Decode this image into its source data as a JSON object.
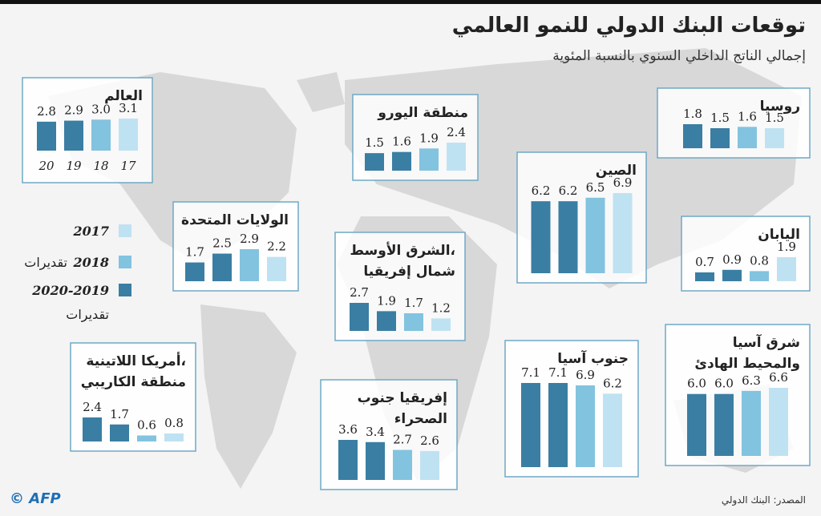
{
  "title": "توقعات البنك الدولي للنمو العالمي",
  "subtitle": "إجمالي الناتج الداخلي السنوي بالنسبة المئوية",
  "bar_colors": [
    "#3a7ea3",
    "#3a7ea3",
    "#82c3df",
    "#bfe2f2"
  ],
  "legend": [
    {
      "year": "2017",
      "color": "#bfe2f2"
    },
    {
      "year": "2018",
      "note": "تقديرات",
      "color": "#82c3df"
    },
    {
      "year": "2020-2019",
      "note": "تقديرات",
      "color": "#3a7ea3"
    }
  ],
  "source": "المصدر: البنك الدولي",
  "credit": "© AFP",
  "chart_data": [
    {
      "type": "bar",
      "title": [
        "العالم"
      ],
      "categories": [
        "20",
        "19",
        "18",
        "17"
      ],
      "values": [
        2.8,
        2.9,
        3.0,
        3.1
      ],
      "value_labels": [
        "2.8",
        "2.9",
        "3.0",
        "3.1"
      ]
    },
    {
      "type": "bar",
      "title": [
        "منطقة اليورو"
      ],
      "values": [
        1.5,
        1.6,
        1.9,
        2.4
      ],
      "value_labels": [
        "1.5",
        "1.6",
        "1.9",
        "2.4"
      ]
    },
    {
      "type": "bar",
      "title": [
        "روسيا"
      ],
      "values": [
        1.8,
        1.5,
        1.6,
        1.5
      ],
      "value_labels": [
        "1.8",
        "1.5",
        "1.6",
        "1.5"
      ]
    },
    {
      "type": "bar",
      "title": [
        "الولايات المتحدة"
      ],
      "values": [
        1.7,
        2.5,
        2.9,
        2.2
      ],
      "value_labels": [
        "1.7",
        "2.5",
        "2.9",
        "2.2"
      ]
    },
    {
      "type": "bar",
      "title": [
        "الصين"
      ],
      "values": [
        6.2,
        6.2,
        6.5,
        6.9
      ],
      "value_labels": [
        "6.2",
        "6.2",
        "6.5",
        "6.9"
      ]
    },
    {
      "type": "bar",
      "title": [
        "اليابان"
      ],
      "values": [
        0.7,
        0.9,
        0.8,
        1.9
      ],
      "value_labels": [
        "0.7",
        "0.9",
        "0.8",
        "1.9"
      ]
    },
    {
      "type": "bar",
      "title": [
        "الشرق الأوسط،",
        "شمال إفريقيا"
      ],
      "values": [
        2.7,
        1.9,
        1.7,
        1.2
      ],
      "value_labels": [
        "2.7",
        "1.9",
        "1.7",
        "1.2"
      ]
    },
    {
      "type": "bar",
      "title": [
        "أمريكا اللاتينية،",
        "منطقة الكاريبي"
      ],
      "values": [
        2.4,
        1.7,
        0.6,
        0.8
      ],
      "value_labels": [
        "2.4",
        "1.7",
        "0.6",
        "0.8"
      ]
    },
    {
      "type": "bar",
      "title": [
        "إفريقيا جنوب",
        "الصحراء"
      ],
      "values": [
        3.6,
        3.4,
        2.7,
        2.6
      ],
      "value_labels": [
        "3.6",
        "3.4",
        "2.7",
        "2.6"
      ]
    },
    {
      "type": "bar",
      "title": [
        "جنوب آسيا"
      ],
      "values": [
        7.1,
        7.1,
        6.9,
        6.2
      ],
      "value_labels": [
        "7.1",
        "7.1",
        "6.9",
        "6.2"
      ]
    },
    {
      "type": "bar",
      "title": [
        "شرق آسيا",
        "والمحيط الهادئ"
      ],
      "values": [
        6.0,
        6.0,
        6.3,
        6.6
      ],
      "value_labels": [
        "6.0",
        "6.0",
        "6.3",
        "6.6"
      ]
    }
  ]
}
